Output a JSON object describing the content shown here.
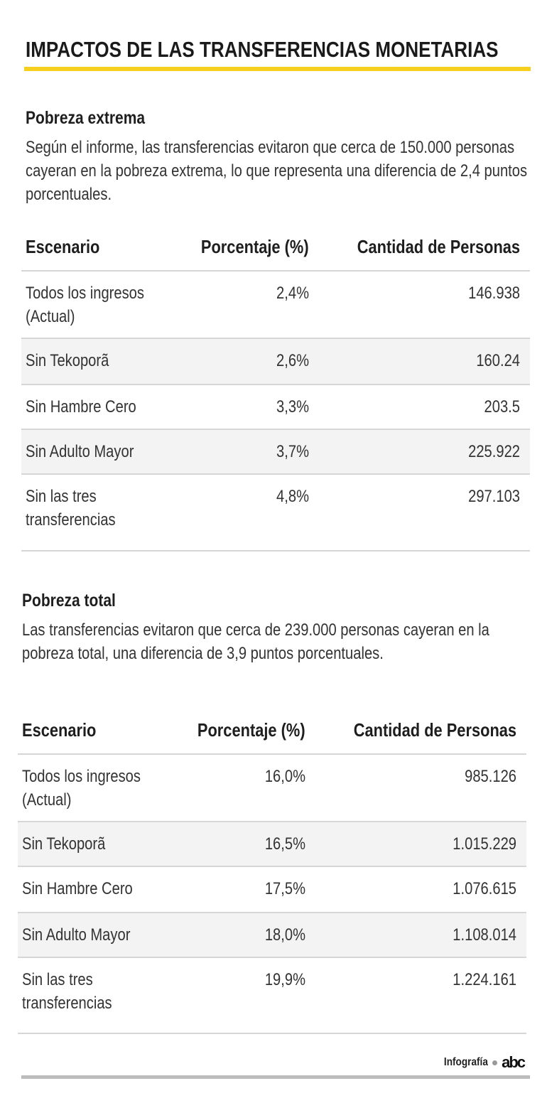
{
  "title": "IMPACTOS DE LAS TRANSFERENCIAS MONETARIAS",
  "colors": {
    "accent": "#f7cf1e",
    "row_shade": "#f3f3f3",
    "divider": "#d6d6d6",
    "footer_line": "#bcbcbc"
  },
  "sections": [
    {
      "heading": "Pobreza extrema",
      "description": "Según el informe, las transferencias evitaron que cerca de 150.000 personas cayeran en la pobreza extrema, lo que representa una diferencia de 2,4 puntos porcentuales.",
      "columns": [
        "Escenario",
        "Porcentaje (%)",
        "Cantidad de Personas"
      ],
      "rows": [
        [
          "Todos los ingresos (Actual)",
          "2,4%",
          "146.938"
        ],
        [
          "Sin Tekoporã",
          "2,6%",
          "160.24"
        ],
        [
          "Sin Hambre Cero",
          "3,3%",
          "203.5"
        ],
        [
          "Sin Adulto Mayor",
          "3,7%",
          "225.922"
        ],
        [
          "Sin las tres transferencias",
          "4,8%",
          "297.103"
        ]
      ]
    },
    {
      "heading": "Pobreza total",
      "description": "Las transferencias evitaron que cerca de 239.000 personas cayeran en la pobreza total, una diferencia de 3,9 puntos porcentuales.",
      "columns": [
        "Escenario",
        "Porcentaje (%)",
        "Cantidad de Personas"
      ],
      "rows": [
        [
          "Todos los ingresos (Actual)",
          "16,0%",
          "985.126"
        ],
        [
          "Sin Tekoporã",
          "16,5%",
          "1.015.229"
        ],
        [
          "Sin Hambre Cero",
          "17,5%",
          "1.076.615"
        ],
        [
          "Sin Adulto Mayor",
          "18,0%",
          "1.108.014"
        ],
        [
          "Sin las tres transferencias",
          "19,9%",
          "1.224.161"
        ]
      ]
    }
  ],
  "footer": {
    "credit": "Infografía",
    "logo": "abc"
  }
}
